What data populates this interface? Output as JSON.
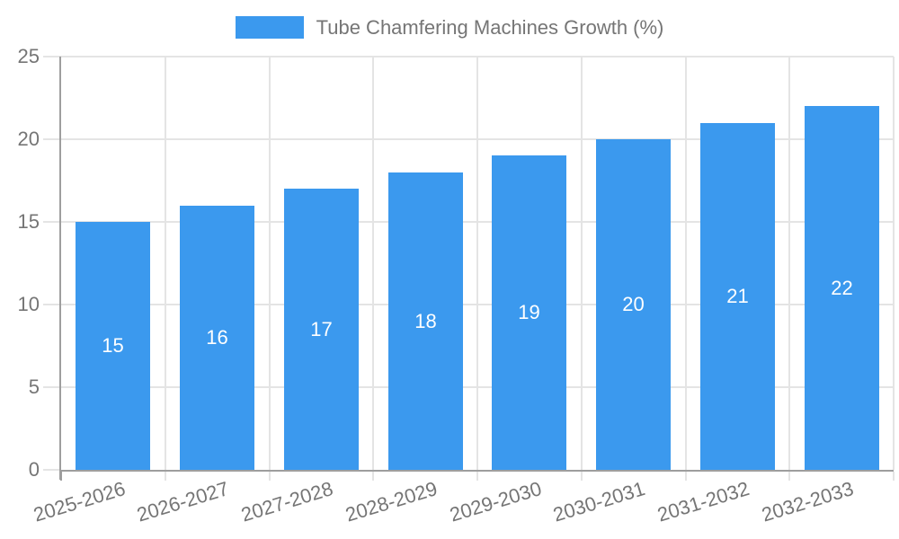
{
  "legend": {
    "series_label": "Tube Chamfering Machines Growth (%)"
  },
  "chart_data": {
    "type": "bar",
    "title": "Tube Chamfering Machines Growth (%)",
    "categories": [
      "2025-2026",
      "2026-2027",
      "2027-2028",
      "2028-2029",
      "2029-2030",
      "2030-2031",
      "2031-2032",
      "2032-2033"
    ],
    "series": [
      {
        "name": "Tube Chamfering Machines Growth (%)",
        "values": [
          15,
          16,
          17,
          18,
          19,
          20,
          21,
          22
        ]
      }
    ],
    "xlabel": "",
    "ylabel": "",
    "ylim": [
      0,
      25
    ],
    "yticks": [
      0,
      5,
      10,
      15,
      20,
      25
    ],
    "grid": true,
    "legend_position": "top-center",
    "value_labels": "inside-center",
    "x_tick_rotation_deg": -17,
    "colors": {
      "bar": "#3b99ee",
      "value_label": "#ffffff",
      "axis": "#9e9e9e",
      "grid": "#e4e4e4",
      "tick_text": "#757575",
      "background": "#ffffff"
    }
  }
}
